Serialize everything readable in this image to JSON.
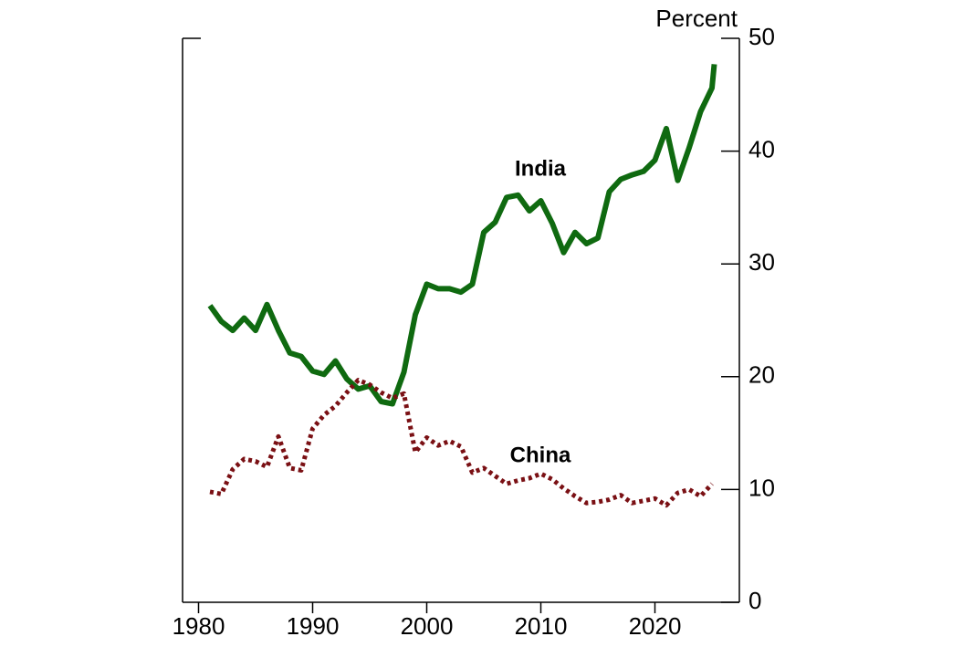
{
  "chart_data": {
    "type": "line",
    "y_label": "Percent",
    "x": [
      1981,
      1982,
      1983,
      1984,
      1985,
      1986,
      1987,
      1988,
      1989,
      1990,
      1991,
      1992,
      1993,
      1994,
      1995,
      1996,
      1997,
      1998,
      1999,
      2000,
      2001,
      2002,
      2003,
      2004,
      2005,
      2006,
      2007,
      2008,
      2009,
      2010,
      2011,
      2012,
      2013,
      2014,
      2015,
      2016,
      2017,
      2018,
      2019,
      2020,
      2021,
      2022,
      2023,
      2024,
      2025,
      2025.2
    ],
    "series": [
      {
        "name": "India",
        "color": "#0f6a10",
        "dash": false,
        "values": [
          26.3,
          24.9,
          24.1,
          25.2,
          24.1,
          26.4,
          24.1,
          22.1,
          21.8,
          20.5,
          20.2,
          21.4,
          19.8,
          18.9,
          19.2,
          17.8,
          17.6,
          20.4,
          25.5,
          28.2,
          27.8,
          27.8,
          27.5,
          28.2,
          32.8,
          33.7,
          35.9,
          36.1,
          34.7,
          35.6,
          33.6,
          31.0,
          32.8,
          31.8,
          32.3,
          36.4,
          37.5,
          37.9,
          38.2,
          39.2,
          42.0,
          37.4,
          40.3,
          43.5,
          45.6,
          47.7
        ]
      },
      {
        "name": "China",
        "color": "#7a1014",
        "dash": true,
        "values": [
          9.8,
          9.6,
          11.8,
          12.7,
          12.5,
          12.0,
          14.7,
          11.9,
          11.7,
          15.4,
          16.6,
          17.4,
          18.6,
          19.7,
          19.3,
          18.6,
          18.1,
          18.5,
          13.3,
          14.6,
          13.9,
          14.3,
          13.8,
          11.5,
          11.9,
          11.2,
          10.5,
          10.8,
          11.0,
          11.4,
          10.9,
          10.1,
          9.4,
          8.8,
          8.9,
          9.1,
          9.5,
          8.8,
          9.0,
          9.2,
          8.6,
          9.7,
          10.0,
          9.4,
          10.5,
          null
        ]
      }
    ],
    "xlim": [
      1978.6,
      2027.4
    ],
    "xticks": [
      1980,
      1990,
      2000,
      2010,
      2020
    ],
    "ylim": [
      0,
      50
    ],
    "yticks": [
      0,
      10,
      20,
      30,
      40,
      50
    ]
  }
}
